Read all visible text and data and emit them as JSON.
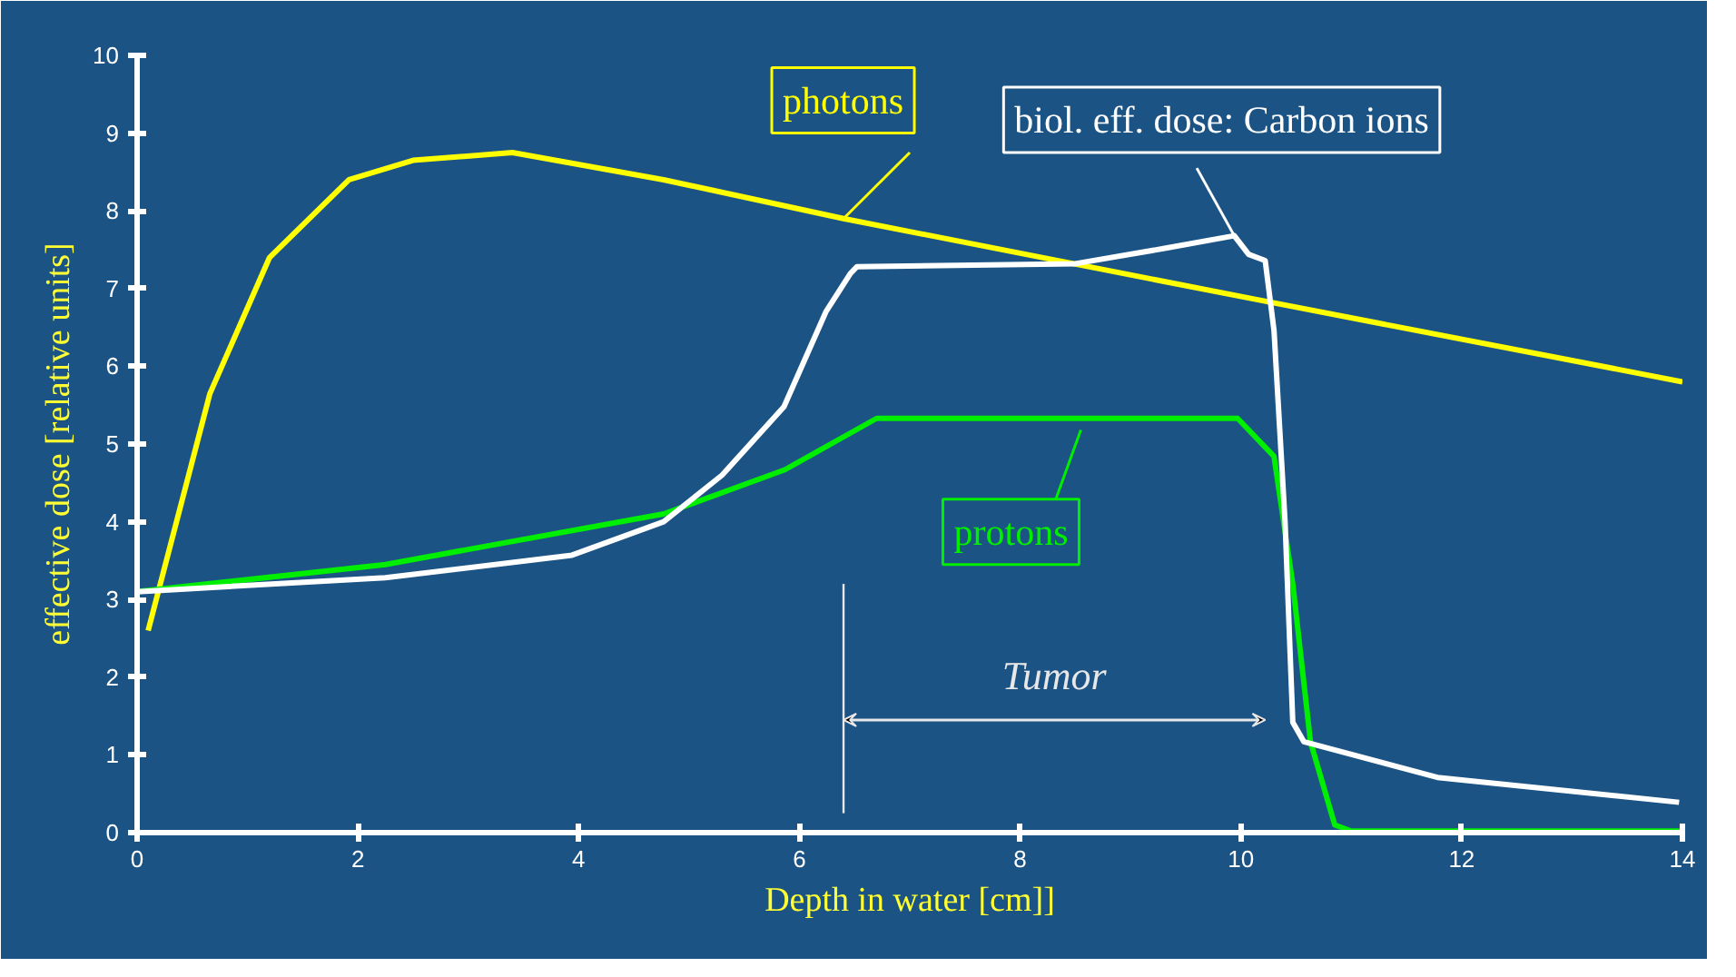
{
  "chart_data": {
    "type": "line",
    "xlabel": "Depth in water [cm]]",
    "ylabel": "effective dose [relative units]",
    "xlim": [
      0,
      14
    ],
    "ylim": [
      0,
      10
    ],
    "xticks": [
      0,
      2,
      4,
      6,
      8,
      10,
      12,
      14
    ],
    "yticks": [
      0,
      1,
      2,
      3,
      4,
      5,
      6,
      7,
      8,
      9,
      10
    ],
    "grid": false,
    "series": [
      {
        "name": "photons",
        "color": "#ffff00",
        "x": [
          0.1,
          0.66,
          1.2,
          1.92,
          2.5,
          3.4,
          4.77,
          6.4,
          10.1,
          14
        ],
        "values": [
          2.6,
          5.65,
          7.4,
          8.4,
          8.65,
          8.75,
          8.4,
          7.9,
          6.87,
          5.8
        ]
      },
      {
        "name": "protons",
        "color": "#00ee00",
        "x": [
          0,
          2.25,
          4.77,
          5.87,
          6.7,
          9.97,
          10.3,
          10.47,
          10.63,
          10.85,
          11,
          14
        ],
        "values": [
          3.1,
          3.45,
          4.1,
          4.67,
          5.33,
          5.33,
          4.84,
          3.2,
          1.17,
          0.1,
          0.02,
          0.02
        ]
      },
      {
        "name": "biol. eff. dose: Carbon ions",
        "color": "#ffffff",
        "x": [
          0,
          2.25,
          3.94,
          4.77,
          5.3,
          5.86,
          6.24,
          6.46,
          6.52,
          8.5,
          9.32,
          9.94,
          10.07,
          10.22,
          10.3,
          10.4,
          10.47,
          10.57,
          11.78,
          13.97
        ],
        "values": [
          3.1,
          3.28,
          3.57,
          4.0,
          4.6,
          5.48,
          6.7,
          7.19,
          7.28,
          7.32,
          7.52,
          7.68,
          7.44,
          7.36,
          6.46,
          4.0,
          1.42,
          1.17,
          0.71,
          0.39
        ]
      }
    ],
    "ref_lines": [
      {
        "axis": "x",
        "value": 6.4
      }
    ],
    "annotations": [
      "Tumor"
    ]
  }
}
